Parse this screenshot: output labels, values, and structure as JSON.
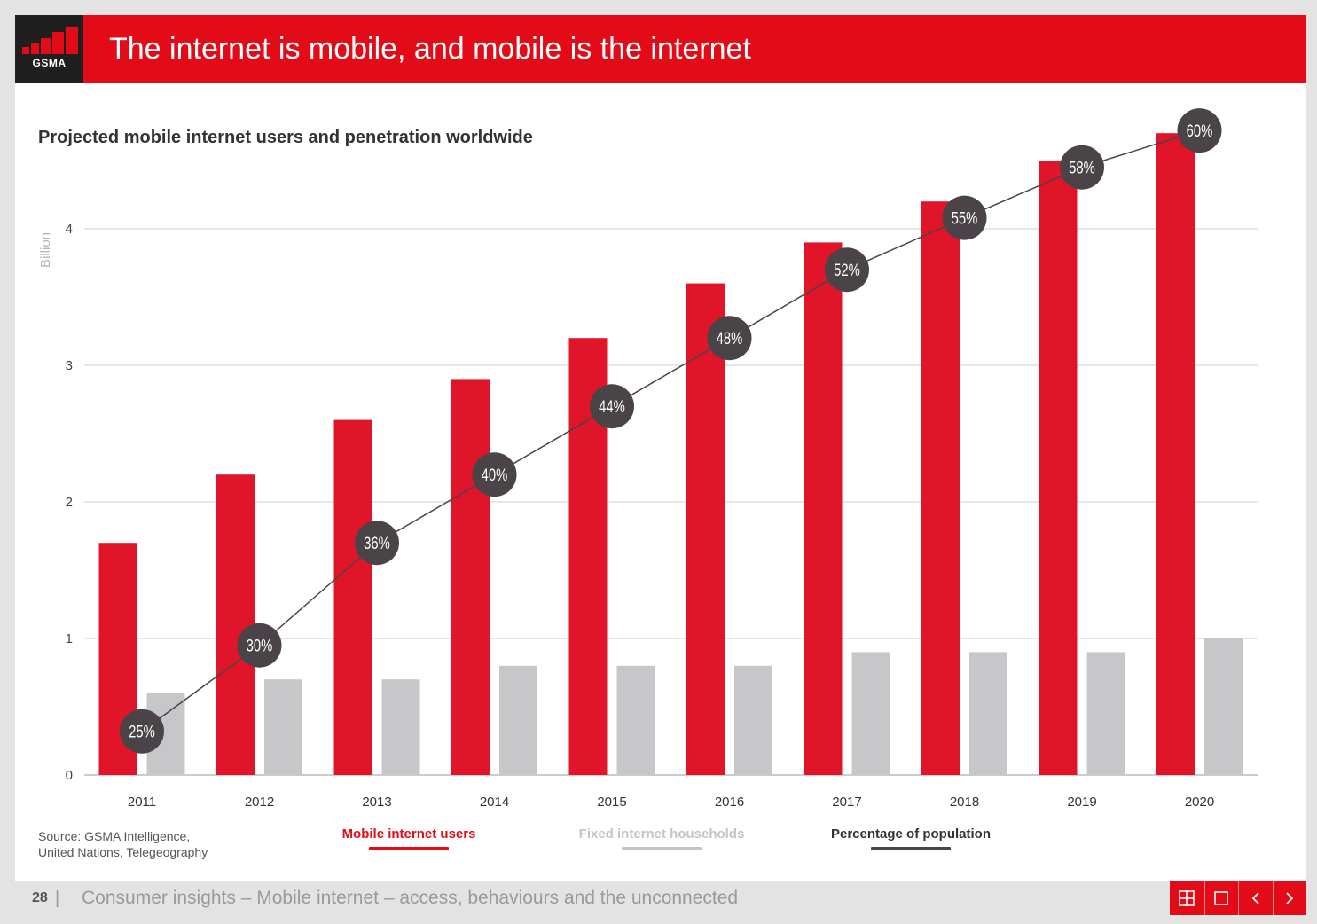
{
  "header": {
    "logo_text": "GSMA",
    "title": "The internet is mobile, and mobile is the internet"
  },
  "chart_data": {
    "type": "bar",
    "title": "Projected mobile internet users and penetration worldwide",
    "ylabel": "Billion",
    "xlabel": "",
    "ylim": [
      0,
      4.6
    ],
    "yticks": [
      0,
      1,
      2,
      3,
      4
    ],
    "categories": [
      "2011",
      "2012",
      "2013",
      "2014",
      "2015",
      "2016",
      "2017",
      "2018",
      "2019",
      "2020"
    ],
    "series": [
      {
        "name": "Mobile internet users",
        "color": "#e0152a",
        "values": [
          1.7,
          2.2,
          2.6,
          2.9,
          3.2,
          3.6,
          3.9,
          4.2,
          4.5,
          4.7
        ]
      },
      {
        "name": "Fixed internet households",
        "color": "#c7c7c9",
        "values": [
          0.6,
          0.7,
          0.7,
          0.8,
          0.8,
          0.8,
          0.9,
          0.9,
          0.9,
          1.0
        ]
      }
    ],
    "line_series": {
      "name": "Percentage of population",
      "color": "#4a4448",
      "labels": [
        "25%",
        "30%",
        "36%",
        "40%",
        "44%",
        "48%",
        "52%",
        "55%",
        "58%",
        "60%"
      ],
      "y_positions": [
        0.32,
        0.95,
        1.7,
        2.2,
        2.7,
        3.2,
        3.7,
        4.08,
        4.45,
        4.72
      ]
    },
    "legend_position": "bottom",
    "grid": true
  },
  "legend": {
    "mobile": "Mobile internet users",
    "fixed": "Fixed internet households",
    "percentage": "Percentage of population"
  },
  "source": {
    "line1": "Source: GSMA Intelligence,",
    "line2": "United Nations, Telegeography"
  },
  "footer": {
    "page_number": "28",
    "separator": "|",
    "text": "Consumer insights – Mobile internet – access, behaviours and the unconnected"
  },
  "nav": {
    "icons": [
      "grid-view-icon",
      "fullscreen-icon",
      "chevron-left-icon",
      "chevron-right-icon"
    ]
  }
}
